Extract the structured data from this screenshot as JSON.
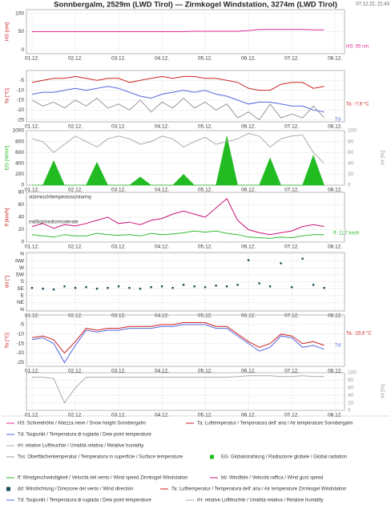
{
  "header": {
    "title": "Sonnbergalm, 2529m (LWD Tirol) — Zirmkogel Windstation, 3274m (LWD Tirol)",
    "timestamp": "07.12.22, 21:43"
  },
  "chart_data": [
    {
      "type": "line",
      "ylabel": "HS [cm]",
      "ylim": [
        -10,
        110
      ],
      "yticks": [
        0,
        50,
        100
      ],
      "grid": true,
      "x": [
        0,
        0.25,
        0.5,
        0.75,
        1,
        1.25,
        1.5,
        1.75,
        2,
        2.25,
        2.5,
        2.75,
        3,
        3.25,
        3.5,
        3.75,
        4,
        4.25,
        4.5,
        4.75,
        5,
        5.25,
        5.5,
        5.75,
        6,
        6.25,
        6.5,
        6.75
      ],
      "xlim": [
        -0.13,
        7.22
      ],
      "xticks": [
        {
          "value": 0,
          "label": "01.12."
        },
        {
          "value": 1,
          "label": "02.12."
        },
        {
          "value": 2,
          "label": "03.12."
        },
        {
          "value": 3,
          "label": "04.12."
        },
        {
          "value": 4,
          "label": "05.12."
        },
        {
          "value": 5,
          "label": "06.12."
        },
        {
          "value": 6,
          "label": "07.12."
        },
        {
          "value": 7,
          "label": "08.12."
        }
      ],
      "annotations": [
        "HS: 55 cm"
      ],
      "series": [
        {
          "name": "HS: Schneehöhe / Altezza neve / Snow height  Sonnbergalm",
          "color": "#e0299a",
          "values": [
            50,
            50,
            50,
            50,
            50,
            50,
            50,
            50,
            50,
            50,
            50,
            50,
            50,
            50,
            50,
            51,
            51,
            51,
            51,
            51,
            53,
            56,
            56,
            56,
            56,
            56,
            55,
            55
          ]
        }
      ]
    },
    {
      "type": "line",
      "ylabel": "Ta [°C]",
      "ylim": [
        -26,
        0
      ],
      "yticks": [
        -5,
        -10,
        -15,
        -20,
        -25
      ],
      "grid": true,
      "x": [
        0,
        0.25,
        0.5,
        0.75,
        1,
        1.25,
        1.5,
        1.75,
        2,
        2.25,
        2.5,
        2.75,
        3,
        3.25,
        3.5,
        3.75,
        4,
        4.25,
        4.5,
        4.75,
        5,
        5.25,
        5.5,
        5.75,
        6,
        6.25,
        6.5,
        6.75
      ],
      "xlim": [
        -0.13,
        7.22
      ],
      "xticks": [
        {
          "value": 0,
          "label": "01.12."
        },
        {
          "value": 1,
          "label": "02.12."
        },
        {
          "value": 2,
          "label": "03.12."
        },
        {
          "value": 3,
          "label": "04.12."
        },
        {
          "value": 4,
          "label": "05.12."
        },
        {
          "value": 5,
          "label": "06.12."
        },
        {
          "value": 6,
          "label": "07.12."
        },
        {
          "value": 7,
          "label": "08.12."
        }
      ],
      "annotations": [
        "Ta: -7,9 °C",
        "Td"
      ],
      "series": [
        {
          "name": "Ta: Lufttemperatur / Temperatura dell' aria / Air temperature  Sonnbergalm",
          "color": "#cc2222",
          "values": [
            -6,
            -5,
            -4,
            -4,
            -3,
            -4,
            -5,
            -4,
            -4,
            -6,
            -5,
            -4,
            -3,
            -4,
            -3,
            -3,
            -4,
            -4,
            -5,
            -6,
            -9,
            -10,
            -10,
            -7,
            -6,
            -6,
            -9,
            -8
          ]
        },
        {
          "name": "Td: Taupunkt / Temperatura di rugiada / Dew point temperature",
          "color": "#5566dd",
          "values": [
            -12,
            -11,
            -11,
            -10,
            -9,
            -10,
            -9,
            -8,
            -9,
            -11,
            -13,
            -14,
            -12,
            -11,
            -10,
            -11,
            -10,
            -12,
            -13,
            -15,
            -17,
            -16,
            -16,
            -17,
            -18,
            -18,
            -20,
            -21
          ]
        },
        {
          "name": "Tss: Oberflächentemperatur / Temperatura in superficie / Surface temperature",
          "color": "#999999",
          "values": [
            -15,
            -18,
            -16,
            -19,
            -15,
            -18,
            -14,
            -19,
            -17,
            -20,
            -15,
            -21,
            -16,
            -19,
            -14,
            -19,
            -16,
            -20,
            -17,
            -24,
            -21,
            -25,
            -17,
            -24,
            -22,
            -24,
            -18,
            -24
          ]
        }
      ]
    },
    {
      "type": "line",
      "ylabel": "EG [W/m²]",
      "y2label": "rH [%]",
      "ylim": [
        0,
        1000
      ],
      "yticks": [
        0,
        200,
        400,
        600,
        800,
        1000
      ],
      "y2lim": [
        0,
        100
      ],
      "y2ticks": [
        0,
        20,
        40,
        60,
        80,
        100
      ],
      "grid": true,
      "x": [
        0,
        0.25,
        0.5,
        0.75,
        1,
        1.25,
        1.5,
        1.75,
        2,
        2.25,
        2.5,
        2.75,
        3,
        3.25,
        3.5,
        3.75,
        4,
        4.25,
        4.5,
        4.75,
        5,
        5.25,
        5.5,
        5.75,
        6,
        6.25,
        6.5,
        6.75
      ],
      "xlim": [
        -0.13,
        7.22
      ],
      "xticks": [
        {
          "value": 0,
          "label": "01.12."
        },
        {
          "value": 1,
          "label": "02.12."
        },
        {
          "value": 2,
          "label": "03.12."
        },
        {
          "value": 3,
          "label": "04.12."
        },
        {
          "value": 4,
          "label": "05.12."
        },
        {
          "value": 5,
          "label": "06.12."
        },
        {
          "value": 6,
          "label": "07.12."
        },
        {
          "value": 7,
          "label": "08.12."
        }
      ],
      "series": [
        {
          "name": "EG: Globalstrahlung / Radiazione globale / Global radiation",
          "color": "#22bb22",
          "kind": "area",
          "values": [
            0,
            0,
            450,
            0,
            0,
            0,
            420,
            0,
            0,
            0,
            150,
            0,
            0,
            0,
            200,
            0,
            0,
            0,
            900,
            0,
            0,
            0,
            500,
            0,
            0,
            0,
            550,
            0
          ]
        },
        {
          "name": "rH: relative Luftfeuchte / Umidità relativa / Relative humidity",
          "color": "#aaaaaa",
          "axis": "y2",
          "values": [
            85,
            80,
            60,
            75,
            90,
            80,
            70,
            85,
            90,
            85,
            75,
            80,
            90,
            85,
            70,
            80,
            88,
            75,
            80,
            85,
            95,
            90,
            70,
            85,
            90,
            92,
            60,
            40
          ]
        }
      ]
    },
    {
      "type": "line",
      "ylabel": "ff [km/h]",
      "ylim": [
        0,
        80
      ],
      "yticks": [
        0,
        20,
        40,
        60,
        80
      ],
      "grid": true,
      "x": [
        0,
        0.25,
        0.5,
        0.75,
        1,
        1.25,
        1.5,
        1.75,
        2,
        2.25,
        2.5,
        2.75,
        3,
        3.25,
        3.5,
        3.75,
        4,
        4.25,
        4.5,
        4.75,
        5,
        5.25,
        5.5,
        5.75,
        6,
        6.25,
        6.5,
        6.75
      ],
      "xlim": [
        -0.13,
        7.22
      ],
      "xticks": [
        {
          "value": 0,
          "label": "01.12."
        },
        {
          "value": 1,
          "label": "02.12."
        },
        {
          "value": 2,
          "label": "03.12."
        },
        {
          "value": 3,
          "label": "04.12."
        },
        {
          "value": 4,
          "label": "05.12."
        },
        {
          "value": 5,
          "label": "06.12."
        },
        {
          "value": 6,
          "label": "07.12."
        },
        {
          "value": 7,
          "label": "08.12."
        }
      ],
      "annotations": [
        "stürmisch/tempestoso/stormy",
        "mäßig/medio/moderate",
        "ff: 11,7 km/h"
      ],
      "series": [
        {
          "name": "ff: Windgeschwindigkeit / Velocità del vento / Wind speed  Zirmkogel Windstation",
          "color": "#33bb33",
          "values": [
            12,
            10,
            8,
            12,
            10,
            10,
            14,
            12,
            11,
            12,
            10,
            14,
            12,
            13,
            15,
            18,
            16,
            18,
            14,
            12,
            8,
            7,
            6,
            8,
            7,
            10,
            12,
            12
          ]
        },
        {
          "name": "bb: Windböe / Velocità raffica / Wind gust speed",
          "color": "#cc1177",
          "values": [
            25,
            30,
            22,
            28,
            26,
            30,
            35,
            40,
            30,
            32,
            28,
            35,
            38,
            45,
            50,
            45,
            40,
            55,
            70,
            35,
            20,
            15,
            12,
            15,
            18,
            25,
            28,
            25
          ]
        }
      ]
    },
    {
      "type": "scatter",
      "ylabel": "dd [°]",
      "ylim": [
        -10,
        370
      ],
      "yticks": [
        {
          "value": 360,
          "label": "N"
        },
        {
          "value": 315,
          "label": "NW"
        },
        {
          "value": 270,
          "label": "W"
        },
        {
          "value": 225,
          "label": "SW"
        },
        {
          "value": 180,
          "label": "S"
        },
        {
          "value": 135,
          "label": "SE"
        },
        {
          "value": 90,
          "label": "E"
        },
        {
          "value": 45,
          "label": "NE"
        },
        {
          "value": 0,
          "label": "N"
        }
      ],
      "grid": true,
      "x": [
        0,
        0.25,
        0.5,
        0.75,
        1,
        1.25,
        1.5,
        1.75,
        2,
        2.25,
        2.5,
        2.75,
        3,
        3.25,
        3.5,
        3.75,
        4,
        4.25,
        4.5,
        4.75,
        5,
        5.25,
        5.5,
        5.75,
        6,
        6.25,
        6.5,
        6.75
      ],
      "xlim": [
        -0.13,
        7.22
      ],
      "xticks": [
        {
          "value": 0,
          "label": "01.12."
        },
        {
          "value": 1,
          "label": "02.12."
        },
        {
          "value": 2,
          "label": "03.12."
        },
        {
          "value": 3,
          "label": "04.12."
        },
        {
          "value": 4,
          "label": "05.12."
        },
        {
          "value": 5,
          "label": "06.12."
        },
        {
          "value": 6,
          "label": "07.12."
        },
        {
          "value": 7,
          "label": "08.12."
        }
      ],
      "series": [
        {
          "name": "dd: Windrichtung / Direzione del vento / Wind direction",
          "color": "#1a4d5c",
          "values": [
            140,
            135,
            130,
            150,
            140,
            145,
            135,
            140,
            150,
            140,
            135,
            145,
            150,
            140,
            160,
            150,
            145,
            155,
            150,
            160,
            320,
            170,
            150,
            300,
            145,
            330,
            160,
            140
          ]
        }
      ]
    },
    {
      "type": "line",
      "ylabel": "Ta [°C]",
      "ylim": [
        -27,
        0
      ],
      "yticks": [
        -5,
        -10,
        -15,
        -20,
        -25
      ],
      "grid": true,
      "x": [
        0,
        0.25,
        0.5,
        0.75,
        1,
        1.25,
        1.5,
        1.75,
        2,
        2.25,
        2.5,
        2.75,
        3,
        3.25,
        3.5,
        3.75,
        4,
        4.25,
        4.5,
        4.75,
        5,
        5.25,
        5.5,
        5.75,
        6,
        6.25,
        6.5,
        6.75
      ],
      "xlim": [
        -0.13,
        7.22
      ],
      "xticks": [
        {
          "value": 0,
          "label": "01.12."
        },
        {
          "value": 1,
          "label": "02.12."
        },
        {
          "value": 2,
          "label": "03.12."
        },
        {
          "value": 3,
          "label": "04.12."
        },
        {
          "value": 4,
          "label": "05.12."
        },
        {
          "value": 5,
          "label": "06.12."
        },
        {
          "value": 6,
          "label": "07.12."
        },
        {
          "value": 7,
          "label": "08.12."
        }
      ],
      "annotations": [
        "Ta: -15,6 °C",
        "Td"
      ],
      "series": [
        {
          "name": "Ta: Lufttemperatur / Temperatura dell' aria / Air temperature  Zirmkogel Windstation",
          "color": "#cc2222",
          "values": [
            -12,
            -11,
            -13,
            -20,
            -14,
            -7,
            -8,
            -7,
            -7,
            -6,
            -6,
            -6,
            -5,
            -5,
            -4,
            -4,
            -4,
            -6,
            -6,
            -10,
            -14,
            -17,
            -15,
            -10,
            -11,
            -15,
            -14,
            -16
          ]
        },
        {
          "name": "Td: Taupunkt / Temperatura di rugiada / Dew point temperature",
          "color": "#5566dd",
          "values": [
            -13,
            -12,
            -15,
            -25,
            -16,
            -8,
            -9,
            -8,
            -8,
            -7,
            -7,
            -7,
            -6,
            -6,
            -5,
            -5,
            -5,
            -7,
            -7,
            -11,
            -15,
            -19,
            -17,
            -11,
            -12,
            -17,
            -16,
            -18
          ]
        }
      ]
    },
    {
      "type": "line",
      "y2label": "rH [%]",
      "y2lim": [
        0,
        100
      ],
      "y2ticks": [
        0,
        20,
        40,
        60,
        80,
        100
      ],
      "grid": true,
      "x": [
        0,
        0.25,
        0.5,
        0.75,
        1,
        1.25,
        1.5,
        1.75,
        2,
        2.25,
        2.5,
        2.75,
        3,
        3.25,
        3.5,
        3.75,
        4,
        4.25,
        4.5,
        4.75,
        5,
        5.25,
        5.5,
        5.75,
        6,
        6.25,
        6.5,
        6.75
      ],
      "xlim": [
        -0.13,
        7.22
      ],
      "xticks": [
        {
          "value": 0,
          "label": "01.12."
        },
        {
          "value": 1,
          "label": "02.12."
        },
        {
          "value": 2,
          "label": "03.12."
        },
        {
          "value": 3,
          "label": "04.12."
        },
        {
          "value": 4,
          "label": "05.12."
        },
        {
          "value": 5,
          "label": "06.12."
        },
        {
          "value": 6,
          "label": "07.12."
        },
        {
          "value": 7,
          "label": "08.12."
        }
      ],
      "series": [
        {
          "name": "rH: relative Luftfeuchte / Umidità relativa / Relative humidity",
          "color": "#aaaaaa",
          "axis": "y2",
          "values": [
            88,
            88,
            85,
            20,
            60,
            88,
            88,
            88,
            88,
            88,
            88,
            88,
            88,
            88,
            88,
            88,
            88,
            88,
            88,
            90,
            92,
            92,
            92,
            90,
            90,
            92,
            90,
            90
          ]
        }
      ]
    }
  ]
}
